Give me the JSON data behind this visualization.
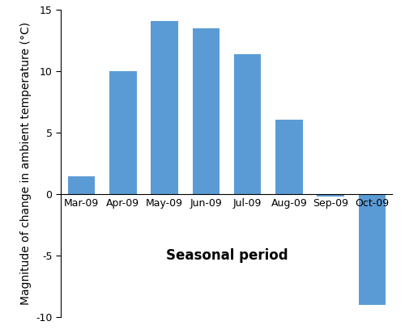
{
  "categories": [
    "Mar-09",
    "Apr-09",
    "May-09",
    "Jun-09",
    "Jul-09",
    "Aug-09",
    "Sep-09",
    "Oct-09"
  ],
  "values": [
    1.5,
    10.0,
    14.1,
    13.5,
    11.4,
    6.1,
    -0.2,
    -9.0
  ],
  "bar_color": "#5b9bd5",
  "xlabel": "Seasonal period",
  "ylabel": "Magnitude of change in ambient temperature (°C)",
  "ylim": [
    -10,
    15
  ],
  "yticks": [
    -10,
    -5,
    0,
    5,
    10,
    15
  ],
  "xlabel_fontsize": 12,
  "ylabel_fontsize": 10,
  "tick_fontsize": 9,
  "background_color": "#ffffff"
}
